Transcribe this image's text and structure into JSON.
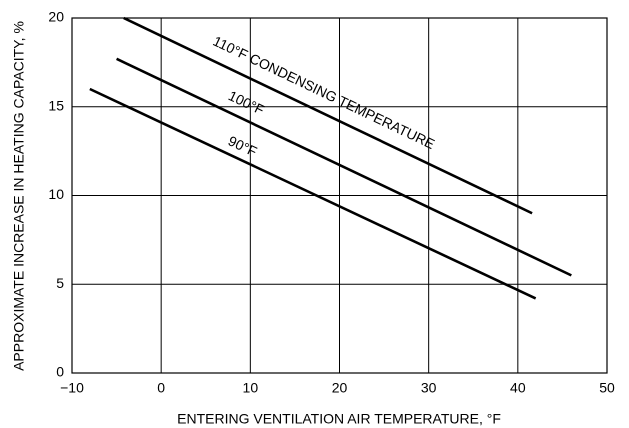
{
  "chart_data": {
    "type": "line",
    "xlabel": "ENTERING VENTILATION AIR TEMPERATURE, °F",
    "ylabel": "APPROXIMATE INCREASE IN HEATING CAPACITY, %",
    "series": [
      {
        "name": "110°F CONDENSING TEMPERATURE",
        "color": "#000000",
        "x": [
          -4.2,
          41.6
        ],
        "values": [
          20,
          9.0
        ]
      },
      {
        "name": "100°F",
        "color": "#000000",
        "x": [
          -5,
          46
        ],
        "values": [
          17.7,
          5.5
        ]
      },
      {
        "name": "90°F",
        "color": "#000000",
        "x": [
          -8,
          42
        ],
        "values": [
          16,
          4.2
        ]
      }
    ],
    "xlim": [
      -10,
      50
    ],
    "xticks": [
      {
        "value": -10,
        "label": "−10"
      },
      0,
      10,
      20,
      30,
      40,
      50
    ],
    "ylim": [
      0,
      20
    ],
    "yticks": [
      0,
      5,
      10,
      15,
      20
    ],
    "grid": true
  }
}
